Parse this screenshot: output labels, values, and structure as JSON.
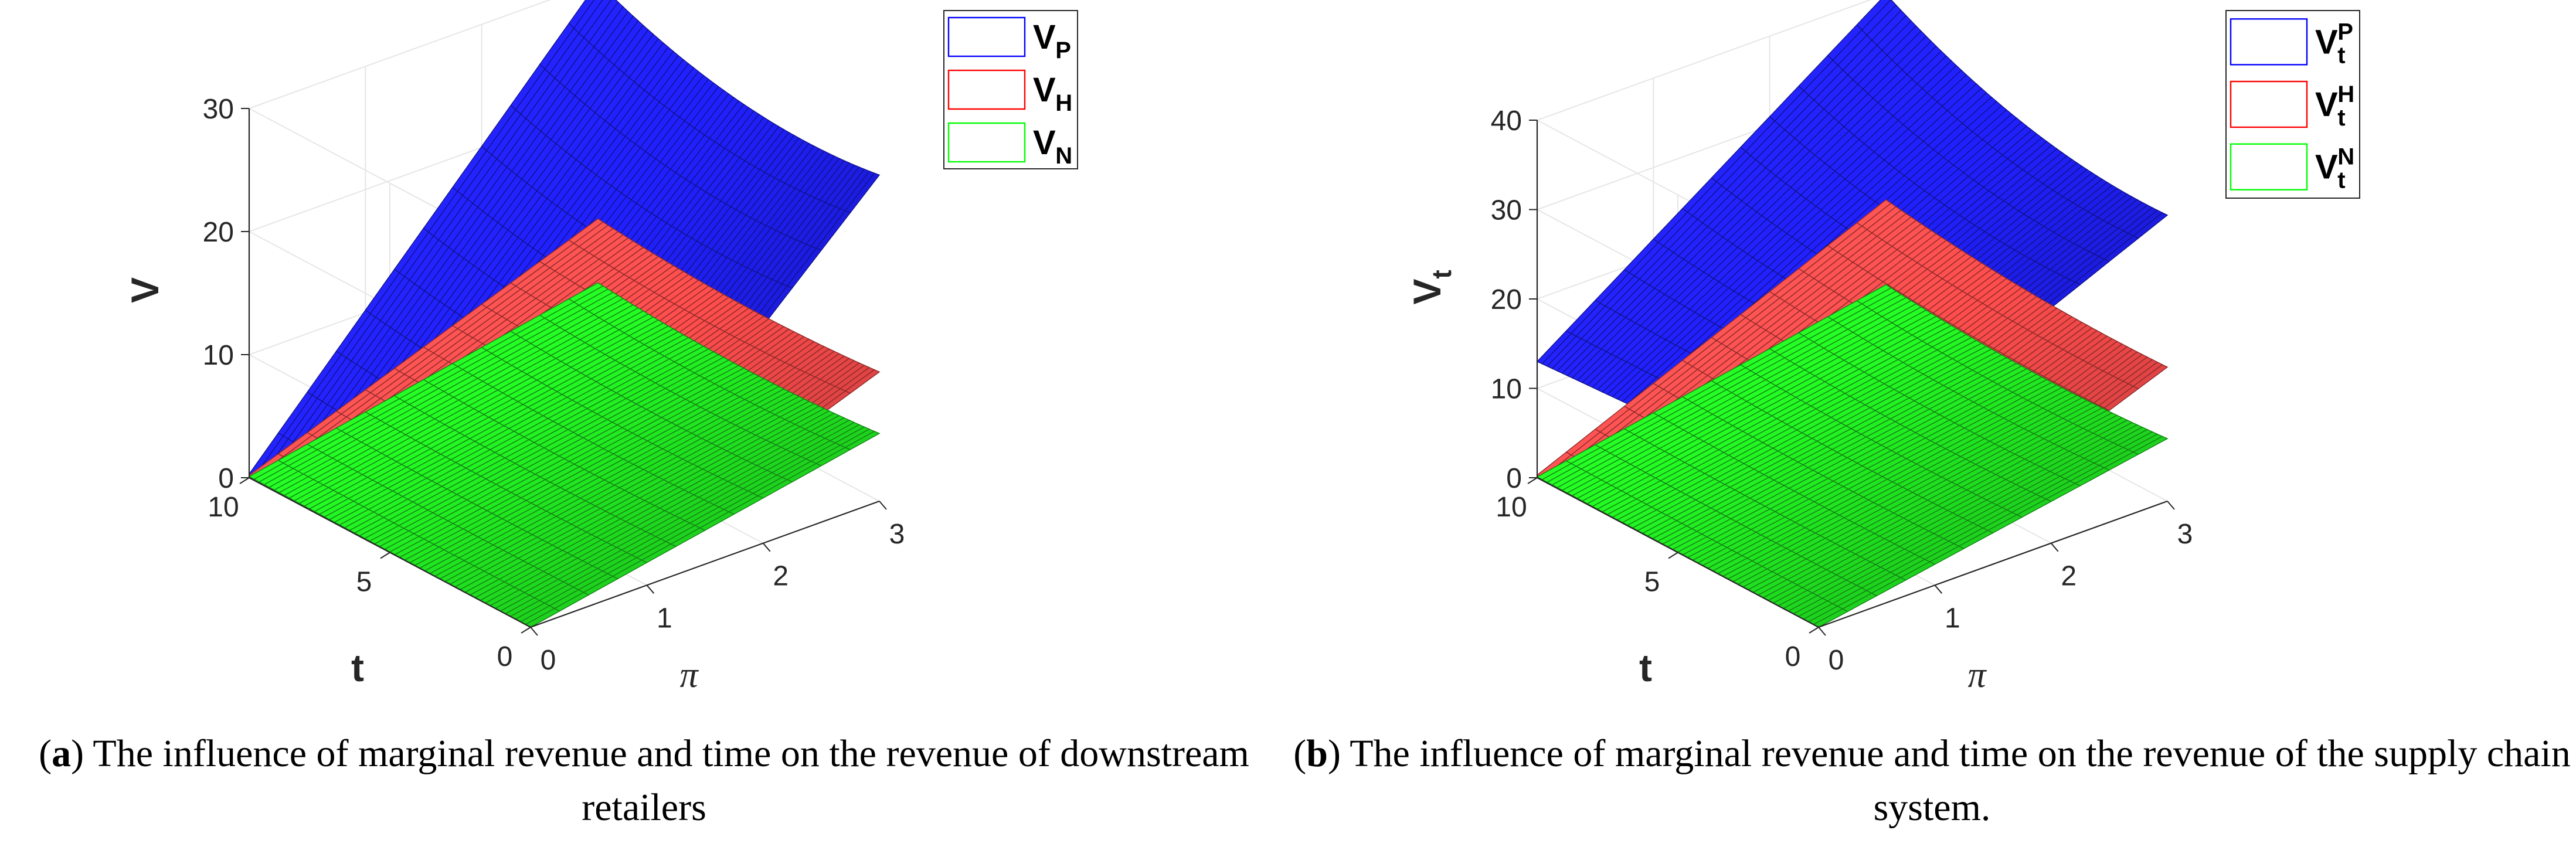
{
  "chart_data": [
    {
      "type": "surface3d",
      "panel_label": "a",
      "caption": "The influence of marginal revenue and time on the revenue of downstream retailers",
      "xlabel": "π",
      "ylabel": "t",
      "zlabel": "V",
      "zlabel_sub": "",
      "xlim": [
        0,
        3
      ],
      "ylim": [
        0,
        10
      ],
      "zlim": [
        0,
        30
      ],
      "xticks": [
        "0",
        "1",
        "2",
        "3"
      ],
      "yticks": [
        "0",
        "5",
        "10"
      ],
      "zticks": [
        "0",
        "10",
        "20",
        "30"
      ],
      "grid": true,
      "legend_position": "top-right",
      "legend": [
        {
          "base": "V",
          "sub": "P",
          "sup": "",
          "color": "#0000ff"
        },
        {
          "base": "V",
          "sub": "H",
          "sup": "",
          "color": "#ff0000"
        },
        {
          "base": "V",
          "sub": "N",
          "sup": "",
          "color": "#00ff00"
        }
      ],
      "surfaces": [
        {
          "name": "VP",
          "color": "#2020ff",
          "z_at_corners": {
            "pi0_t0": 0,
            "pi3_t0": 26.5,
            "pi0_t10": 0.3,
            "pi3_t10": 30
          }
        },
        {
          "name": "VH",
          "color": "#ff4d4d",
          "z_at_corners": {
            "pi0_t0": 0,
            "pi3_t0": 10.5,
            "pi0_t10": 0.2,
            "pi3_t10": 10.8
          }
        },
        {
          "name": "VN",
          "color": "#22ee22",
          "z_at_corners": {
            "pi0_t0": 0,
            "pi3_t0": 5.5,
            "pi0_t10": 0.1,
            "pi3_t10": 5.6
          }
        }
      ]
    },
    {
      "type": "surface3d",
      "panel_label": "b",
      "caption": "The influence of marginal revenue and time on the revenue of the supply chain system.",
      "xlabel": "π",
      "ylabel": "t",
      "zlabel": "V",
      "zlabel_sub": "t",
      "xlim": [
        0,
        3
      ],
      "ylim": [
        0,
        10
      ],
      "zlim": [
        0,
        40
      ],
      "xticks": [
        "0",
        "1",
        "2",
        "3"
      ],
      "yticks": [
        "0",
        "5",
        "10"
      ],
      "zticks": [
        "0",
        "10",
        "20",
        "30",
        "40"
      ],
      "grid": true,
      "legend_position": "top-right",
      "legend": [
        {
          "base": "V",
          "sub": "t",
          "sup": "P",
          "color": "#0000ff"
        },
        {
          "base": "V",
          "sub": "t",
          "sup": "H",
          "color": "#ff0000"
        },
        {
          "base": "V",
          "sub": "t",
          "sup": "N",
          "color": "#00ff00"
        }
      ],
      "surfaces": [
        {
          "name": "VtP",
          "color": "#2020ff",
          "z_at_corners": {
            "pi0_t0": 15,
            "pi3_t0": 32,
            "pi0_t10": 13,
            "pi3_t10": 40
          }
        },
        {
          "name": "VtH",
          "color": "#ff4d4d",
          "z_at_corners": {
            "pi0_t0": 0,
            "pi3_t0": 15,
            "pi0_t10": 0.3,
            "pi3_t10": 17
          }
        },
        {
          "name": "VtN",
          "color": "#22ee22",
          "z_at_corners": {
            "pi0_t0": 0,
            "pi3_t0": 7,
            "pi0_t10": 0.1,
            "pi3_t10": 7.5
          }
        }
      ]
    }
  ]
}
